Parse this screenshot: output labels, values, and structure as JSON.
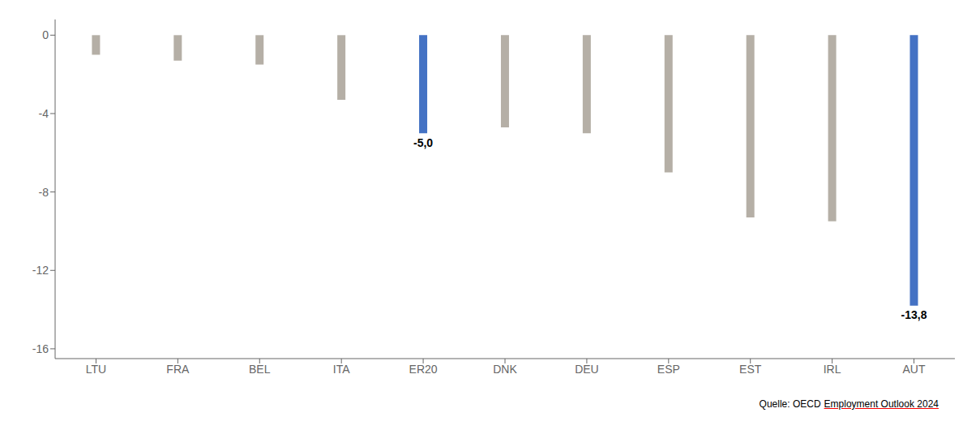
{
  "chart_data": {
    "type": "bar",
    "categories": [
      "LTU",
      "FRA",
      "BEL",
      "ITA",
      "ER20",
      "DNK",
      "DEU",
      "ESP",
      "EST",
      "IRL",
      "AUT"
    ],
    "values": [
      -1.0,
      -1.3,
      -1.5,
      -3.3,
      -5.0,
      -4.7,
      -5.0,
      -7.0,
      -9.3,
      -9.5,
      -13.8
    ],
    "value_labels": [
      null,
      null,
      null,
      null,
      "-5,0",
      null,
      null,
      null,
      null,
      null,
      "-13,8"
    ],
    "colors": [
      "#b5afa6",
      "#b5afa6",
      "#b5afa6",
      "#b5afa6",
      "#4472c4",
      "#b5afa6",
      "#b5afa6",
      "#b5afa6",
      "#b5afa6",
      "#b5afa6",
      "#4472c4"
    ],
    "ylim": [
      -16.5,
      0.8
    ],
    "yticks": [
      0,
      -4,
      -8,
      -12,
      -16
    ],
    "grid": false,
    "annotations": [
      "Quelle: OECD",
      "Employment Outlook 2024"
    ]
  }
}
